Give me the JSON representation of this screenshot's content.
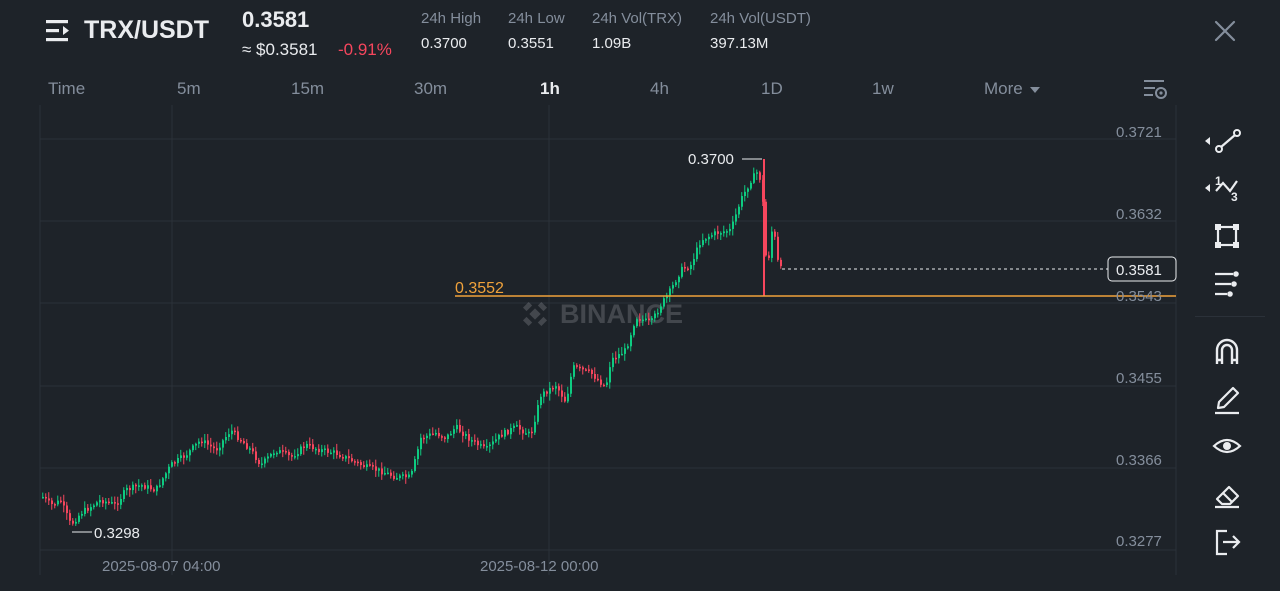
{
  "header": {
    "pair": "TRX/USDT",
    "last_price": "0.3581",
    "approx_usd": "≈ $0.3581",
    "change_pct": "-0.91%",
    "stats": [
      {
        "label": "24h High",
        "value": "0.3700"
      },
      {
        "label": "24h Low",
        "value": "0.3551"
      },
      {
        "label": "24h Vol(TRX)",
        "value": "1.09B"
      },
      {
        "label": "24h Vol(USDT)",
        "value": "397.13M"
      }
    ]
  },
  "intervals": {
    "items": [
      "Time",
      "5m",
      "15m",
      "30m",
      "1h",
      "4h",
      "1D",
      "1w",
      "More"
    ],
    "active": "1h"
  },
  "chart": {
    "watermark": "BINANCE",
    "y_ticks": [
      "0.3721",
      "0.3632",
      "0.3543",
      "0.3455",
      "0.3366",
      "0.3277"
    ],
    "x_ticks": [
      "2025-08-07 04:00",
      "2025-08-12 00:00"
    ],
    "high_marker": "0.3700",
    "low_marker": "0.3298",
    "hline_label": "0.3552",
    "price_tag": "0.3581",
    "colors": {
      "up": "#0ecb81",
      "down": "#f6465d",
      "hline": "#f0a23b",
      "grid": "#2b3139",
      "axis": "#848e9c"
    }
  },
  "toolbar": {
    "icons": [
      "trend-line-icon",
      "fib-icon",
      "shapes-icon",
      "indicators-icon",
      "magnet-icon",
      "pen-icon",
      "eye-icon",
      "eraser-icon",
      "exit-icon"
    ]
  }
}
